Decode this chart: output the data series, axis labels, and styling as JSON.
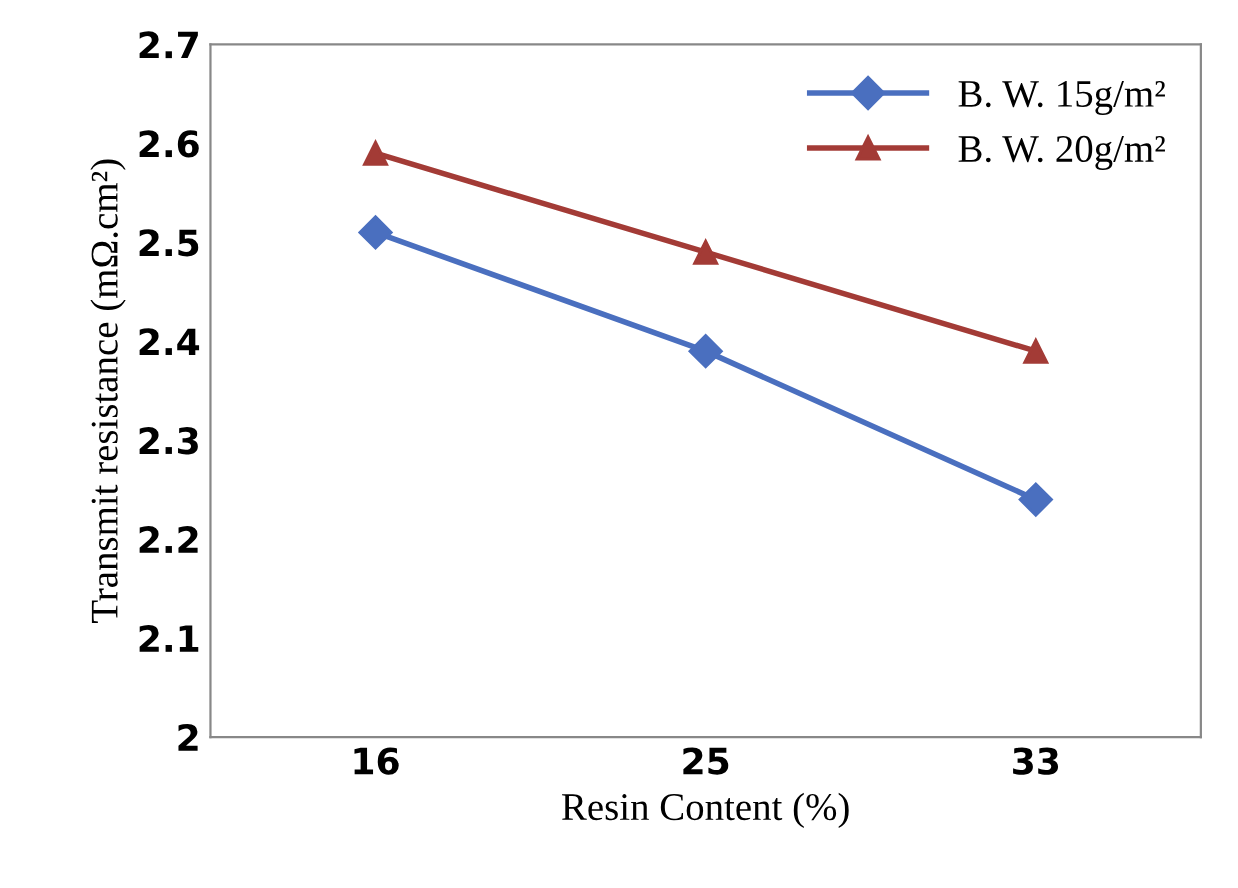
{
  "chart_data": {
    "type": "line",
    "xlabel": "Resin Content (%)",
    "ylabel": "Transmit resistance (mΩ.cm²)",
    "categories": [
      "16",
      "25",
      "33"
    ],
    "series": [
      {
        "name": "B. W. 15g/m²",
        "color": "#4a6fbf",
        "marker": "diamond",
        "values": [
          2.51,
          2.39,
          2.24
        ]
      },
      {
        "name": "B. W. 20g/m²",
        "color": "#a33b36",
        "marker": "triangle",
        "values": [
          2.59,
          2.49,
          2.39
        ]
      }
    ],
    "ylim": [
      2,
      2.7
    ],
    "yticks": [
      2,
      2.1,
      2.2,
      2.3,
      2.4,
      2.5,
      2.6,
      2.7
    ],
    "grid": false,
    "legend": "top right",
    "line_style": "solid"
  }
}
